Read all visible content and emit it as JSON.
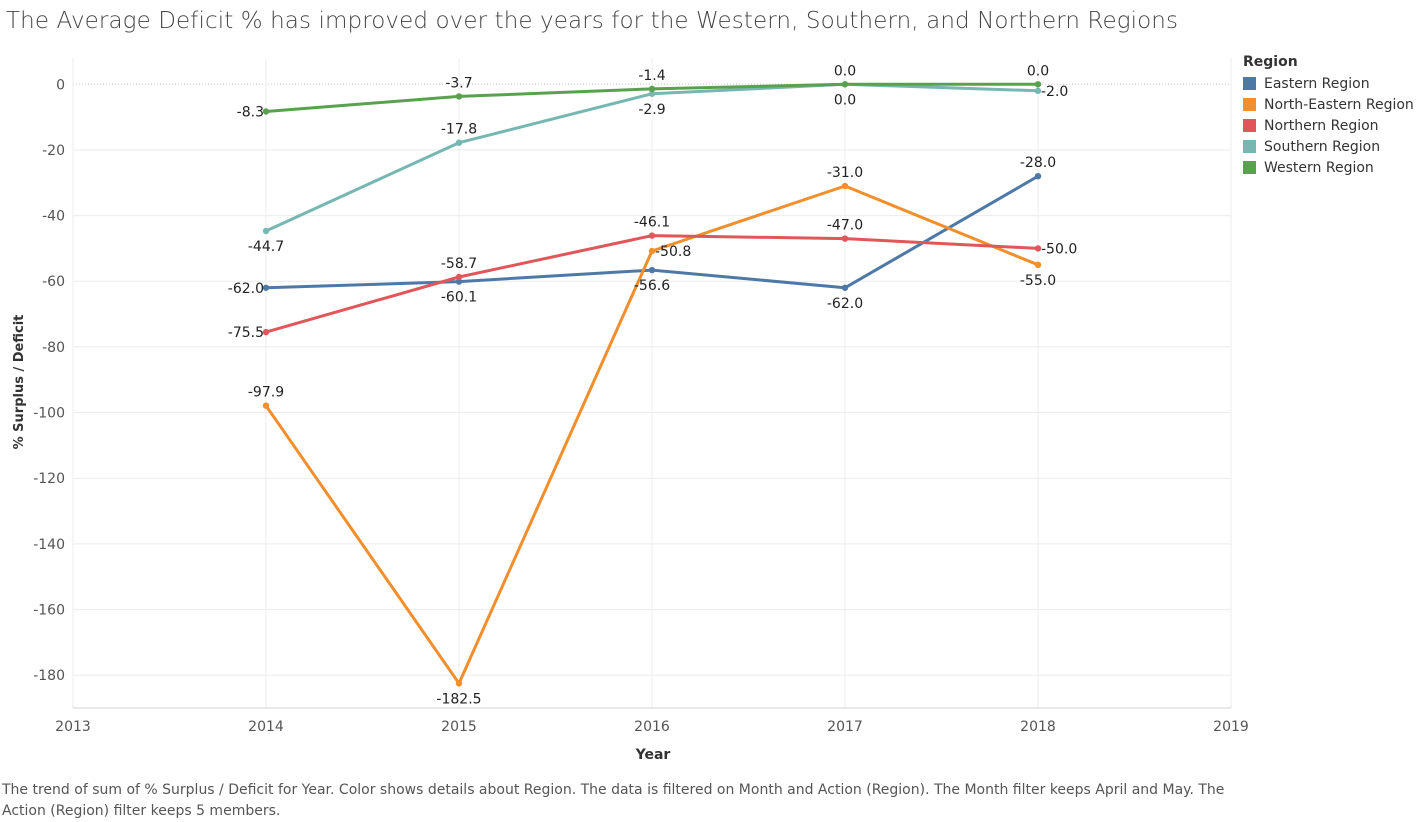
{
  "caption": "The trend of sum of % Surplus / Deficit for Year.  Color shows details about Region. The data is filtered on Month and Action (Region). The Month filter keeps April and May. The Action (Region) filter keeps 5 members.",
  "chart_data": {
    "type": "line",
    "title": "The Average Deficit % has improved over the years for the Western, Southern, and Northern Regions",
    "xlabel": "Year",
    "ylabel": "% Surplus / Deficit",
    "xlim": [
      2013,
      2019
    ],
    "ylim": [
      -190,
      8
    ],
    "x_ticks": [
      2013,
      2014,
      2015,
      2016,
      2017,
      2018,
      2019
    ],
    "y_ticks": [
      0,
      -20,
      -40,
      -60,
      -80,
      -100,
      -120,
      -140,
      -160,
      -180
    ],
    "grid": true,
    "legend_title": "Region",
    "legend_position": "right",
    "x": [
      2014,
      2015,
      2016,
      2017,
      2018
    ],
    "series": [
      {
        "name": "Eastern Region",
        "color": "#4e79a7",
        "values": [
          -62.0,
          -60.1,
          -56.6,
          -62.0,
          -28.0
        ],
        "labels": [
          "-62.0",
          "-60.1",
          "-56.6",
          "-62.0",
          "-28.0"
        ]
      },
      {
        "name": "North-Eastern Region",
        "color": "#f28e2b",
        "values": [
          -97.9,
          -182.5,
          -50.8,
          -31.0,
          -55.0
        ],
        "labels": [
          "-97.9",
          "-182.5",
          "-50.8",
          "-31.0",
          "-55.0"
        ]
      },
      {
        "name": "Northern Region",
        "color": "#e15759",
        "values": [
          -75.5,
          -58.7,
          -46.1,
          -47.0,
          -50.0
        ],
        "labels": [
          "-75.5",
          "-58.7",
          "-46.1",
          "-47.0",
          "-50.0"
        ]
      },
      {
        "name": "Southern Region",
        "color": "#76b7b2",
        "values": [
          -44.7,
          -17.8,
          -2.9,
          0.0,
          -2.0
        ],
        "labels": [
          "-44.7",
          "-17.8",
          "-2.9",
          "0.0",
          "-2.0"
        ]
      },
      {
        "name": "Western Region",
        "color": "#59a14f",
        "values": [
          -8.3,
          -3.7,
          -1.4,
          0.0,
          0.0
        ],
        "labels": [
          "-8.3",
          "-3.7",
          "-1.4",
          "0.0",
          "0.0"
        ]
      }
    ]
  }
}
